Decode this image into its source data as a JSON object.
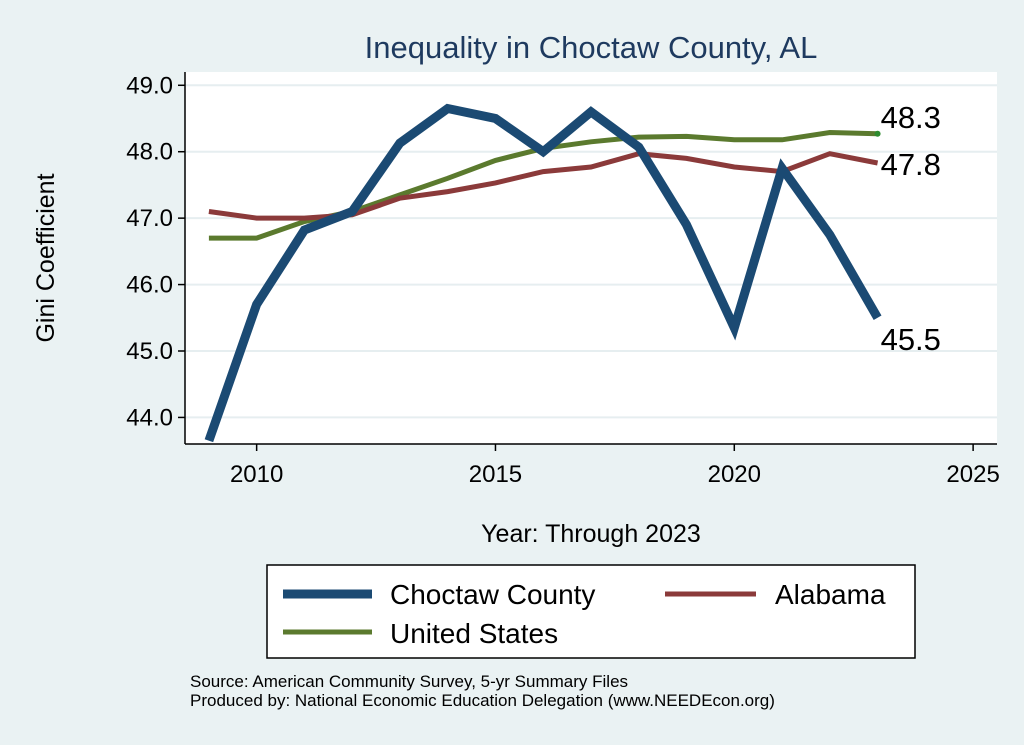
{
  "footer": {
    "source": "Source: American Community Survey, 5-yr Summary Files",
    "producer": "Produced by: National Economic Education Delegation (www.NEEDEcon.org)"
  },
  "chart_data": {
    "type": "line",
    "title": "Inequality in Choctaw County, AL",
    "xlabel": "Year: Through 2023",
    "ylabel": "Gini Coefficient",
    "xlim": [
      2008.5,
      2025.5
    ],
    "ylim": [
      43.6,
      49.2
    ],
    "x_ticks": [
      2010,
      2015,
      2020,
      2025
    ],
    "y_ticks": [
      44.0,
      45.0,
      46.0,
      47.0,
      48.0,
      49.0
    ],
    "y_tick_labels": [
      "44.0",
      "45.0",
      "46.0",
      "47.0",
      "48.0",
      "49.0"
    ],
    "grid": true,
    "legend_position": "bottom",
    "x": [
      2009,
      2010,
      2011,
      2012,
      2013,
      2014,
      2015,
      2016,
      2017,
      2018,
      2019,
      2020,
      2021,
      2022,
      2023
    ],
    "series": [
      {
        "name": "Choctaw County",
        "color": "#1b4a73",
        "width": 9,
        "values": [
          43.65,
          45.7,
          46.82,
          47.1,
          48.13,
          48.65,
          48.5,
          48.0,
          48.6,
          48.07,
          46.9,
          45.35,
          47.75,
          46.75,
          45.5
        ],
        "end_label": "45.5"
      },
      {
        "name": "Alabama",
        "color": "#8b3a3a",
        "width": 5,
        "values": [
          47.1,
          47.0,
          47.0,
          47.05,
          47.3,
          47.4,
          47.53,
          47.7,
          47.77,
          47.97,
          47.9,
          47.77,
          47.7,
          47.97,
          47.83
        ],
        "end_label": "47.8"
      },
      {
        "name": "United States",
        "color": "#5b7a2e",
        "width": 5,
        "values": [
          46.7,
          46.7,
          46.95,
          47.1,
          47.35,
          47.6,
          47.87,
          48.05,
          48.15,
          48.22,
          48.23,
          48.18,
          48.18,
          48.29,
          48.27
        ],
        "end_label": "48.3"
      }
    ]
  }
}
